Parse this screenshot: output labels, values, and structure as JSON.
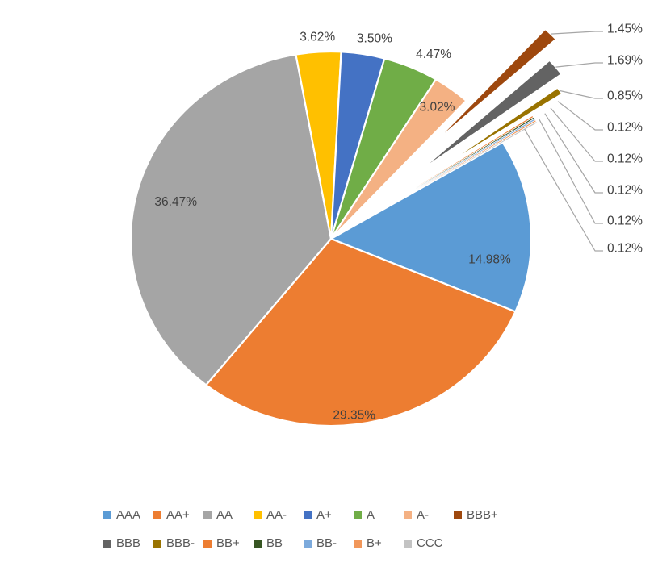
{
  "chart_data": {
    "type": "pie",
    "title": "",
    "values_are": "percent_of_total",
    "start_angle_deg": 59,
    "direction": "clockwise",
    "legend_position": "bottom",
    "background": "#FFFFFF",
    "label_color": "#404040",
    "legend_text_color": "#595959",
    "leader_line_color": "#A6A6A6",
    "slices": [
      {
        "label": "AAA",
        "value": 14.98,
        "display": "14.98%",
        "color": "#5B9BD5",
        "label_placement": "inside",
        "exploded": false
      },
      {
        "label": "AA+",
        "value": 29.35,
        "display": "29.35%",
        "color": "#ED7D31",
        "label_placement": "inside",
        "exploded": false
      },
      {
        "label": "AA",
        "value": 36.47,
        "display": "36.47%",
        "color": "#A5A5A5",
        "label_placement": "inside",
        "exploded": false
      },
      {
        "label": "AA-",
        "value": 3.62,
        "display": "3.62%",
        "color": "#FFC000",
        "label_placement": "outside",
        "exploded": false
      },
      {
        "label": "A+",
        "value": 3.5,
        "display": "3.50%",
        "color": "#4472C4",
        "label_placement": "outside",
        "exploded": false
      },
      {
        "label": "A",
        "value": 4.47,
        "display": "4.47%",
        "color": "#70AD47",
        "label_placement": "outside",
        "exploded": false
      },
      {
        "label": "A-",
        "value": 3.02,
        "display": "3.02%",
        "color": "#F4B183",
        "label_placement": "inside",
        "exploded": false
      },
      {
        "label": "BBB+",
        "value": 1.45,
        "display": "1.45%",
        "color": "#9E480E",
        "label_placement": "callout",
        "exploded": true
      },
      {
        "label": "BBB",
        "value": 1.69,
        "display": "1.69%",
        "color": "#636363",
        "label_placement": "callout",
        "exploded": true
      },
      {
        "label": "BBB-",
        "value": 0.85,
        "display": "0.85%",
        "color": "#997300",
        "label_placement": "callout",
        "exploded": true
      },
      {
        "label": "BB+",
        "value": 0.12,
        "display": "0.12%",
        "color": "#ED7D31",
        "label_placement": "callout",
        "exploded": true
      },
      {
        "label": "BB",
        "value": 0.12,
        "display": "0.12%",
        "color": "#375623",
        "label_placement": "callout",
        "exploded": true
      },
      {
        "label": "BB-",
        "value": 0.12,
        "display": "0.12%",
        "color": "#7CAADC",
        "label_placement": "callout",
        "exploded": true
      },
      {
        "label": "B+",
        "value": 0.12,
        "display": "0.12%",
        "color": "#F1975A",
        "label_placement": "callout",
        "exploded": true
      },
      {
        "label": "CCC",
        "value": 0.12,
        "display": "0.12%",
        "color": "#C3C3C3",
        "label_placement": "callout",
        "exploded": true
      }
    ],
    "legend_rows": [
      [
        "AAA",
        "AA+",
        "AA",
        "AA-",
        "A+",
        "A",
        "A-",
        "BBB+"
      ],
      [
        "BBB",
        "BBB-",
        "BB+",
        "BB",
        "BB-",
        "B+",
        "CCC"
      ]
    ]
  }
}
